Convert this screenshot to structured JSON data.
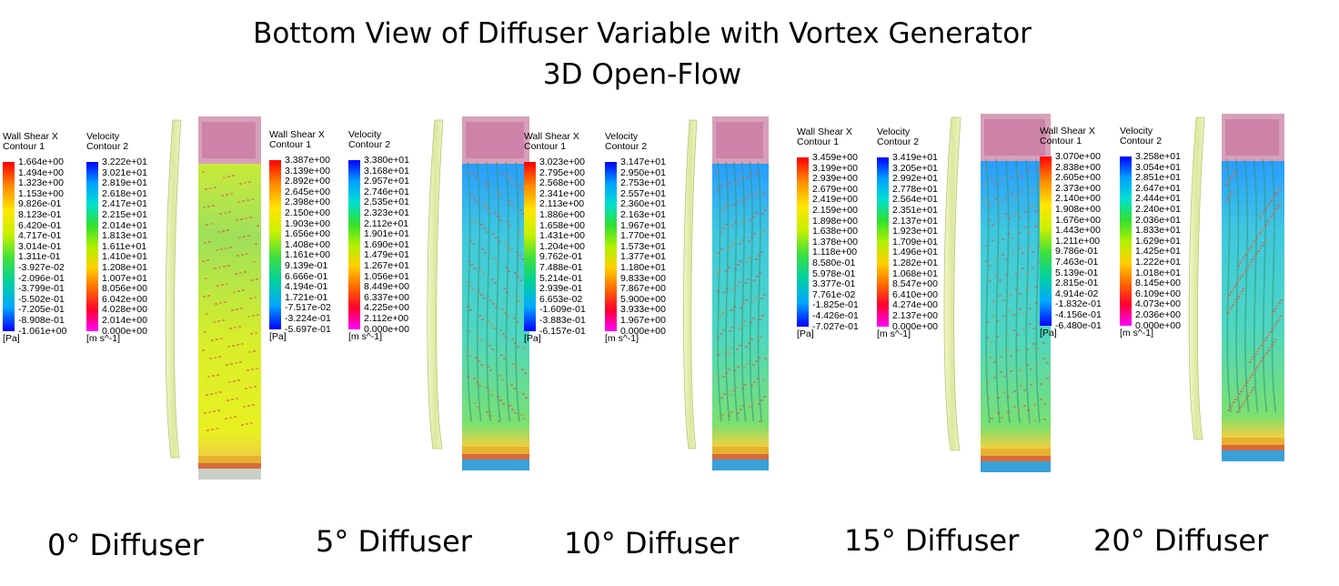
{
  "title": {
    "line1": "Bottom View of Diffuser Variable with Vortex Generator",
    "line2": "3D Open-Flow"
  },
  "legend_common": {
    "shear_title": "Wall Shear X",
    "shear_sub": "Contour 1",
    "shear_unit": "[Pa]",
    "vel_title": "Velocity",
    "vel_sub": "Contour 2",
    "vel_unit": "[m s^-1]"
  },
  "colormaps": {
    "shear": [
      "#ff0000",
      "#ff8c00",
      "#ffe600",
      "#c8f000",
      "#3ee03e",
      "#00d0a0",
      "#00a8ff",
      "#0000ff"
    ],
    "velocity": [
      "#0000ff",
      "#00a0ff",
      "#00e0d0",
      "#30e030",
      "#b0f000",
      "#ffd000",
      "#ff6a00",
      "#ff0030",
      "#ff00ff"
    ]
  },
  "panels": [
    {
      "caption": "0° Diffuser",
      "shear": [
        "1.664e+00",
        "1.494e+00",
        "1.323e+00",
        "1.153e+00",
        "9.826e-01",
        "8.123e-01",
        "6.420e-01",
        "4.717e-01",
        "3.014e-01",
        "1.311e-01",
        "-3.927e-02",
        "-2.096e-01",
        "-3.799e-01",
        "-5.502e-01",
        "-7.205e-01",
        "-8.908e-01",
        "-1.061e+00"
      ],
      "velocity": [
        "3.222e+01",
        "3.021e+01",
        "2.819e+01",
        "2.618e+01",
        "2.417e+01",
        "2.215e+01",
        "2.014e+01",
        "1.813e+01",
        "1.611e+01",
        "1.410e+01",
        "1.208e+01",
        "1.007e+01",
        "8.056e+00",
        "6.042e+00",
        "4.028e+00",
        "2.014e+00",
        "0.000e+00"
      ]
    },
    {
      "caption": "5° Diffuser",
      "shear": [
        "3.387e+00",
        "3.139e+00",
        "2.892e+00",
        "2.645e+00",
        "2.398e+00",
        "2.150e+00",
        "1.903e+00",
        "1.656e+00",
        "1.408e+00",
        "1.161e+00",
        "9.139e-01",
        "6.666e-01",
        "4.194e-01",
        "1.721e-01",
        "-7.517e-02",
        "-3.224e-01",
        "-5.697e-01"
      ],
      "velocity": [
        "3.380e+01",
        "3.168e+01",
        "2.957e+01",
        "2.746e+01",
        "2.535e+01",
        "2.323e+01",
        "2.112e+01",
        "1.901e+01",
        "1.690e+01",
        "1.479e+01",
        "1.267e+01",
        "1.056e+01",
        "8.449e+00",
        "6.337e+00",
        "4.225e+00",
        "2.112e+00",
        "0.000e+00"
      ]
    },
    {
      "caption": "10° Diffuser",
      "shear": [
        "3.023e+00",
        "2.795e+00",
        "2.568e+00",
        "2.341e+00",
        "2.113e+00",
        "1.886e+00",
        "1.658e+00",
        "1.431e+00",
        "1.204e+00",
        "9.762e-01",
        "7.488e-01",
        "5.214e-01",
        "2.939e-01",
        "6.653e-02",
        "-1.609e-01",
        "-3.883e-01",
        "-6.157e-01"
      ],
      "velocity": [
        "3.147e+01",
        "2.950e+01",
        "2.753e+01",
        "2.557e+01",
        "2.360e+01",
        "2.163e+01",
        "1.967e+01",
        "1.770e+01",
        "1.573e+01",
        "1.377e+01",
        "1.180e+01",
        "9.833e+00",
        "7.867e+00",
        "5.900e+00",
        "3.933e+00",
        "1.967e+00",
        "0.000e+00"
      ]
    },
    {
      "caption": "15° Diffuser",
      "shear": [
        "3.459e+00",
        "3.199e+00",
        "2.939e+00",
        "2.679e+00",
        "2.419e+00",
        "2.159e+00",
        "1.898e+00",
        "1.638e+00",
        "1.378e+00",
        "1.118e+00",
        "8.580e-01",
        "5.978e-01",
        "3.377e-01",
        "7.761e-02",
        "-1.825e-01",
        "-4.426e-01",
        "-7.027e-01"
      ],
      "velocity": [
        "3.419e+01",
        "3.205e+01",
        "2.992e+01",
        "2.778e+01",
        "2.564e+01",
        "2.351e+01",
        "2.137e+01",
        "1.923e+01",
        "1.709e+01",
        "1.496e+01",
        "1.282e+01",
        "1.068e+01",
        "8.547e+00",
        "6.410e+00",
        "4.274e+00",
        "2.137e+00",
        "0.000e+00"
      ]
    },
    {
      "caption": "20° Diffuser",
      "shear": [
        "3.070e+00",
        "2.838e+00",
        "2.605e+00",
        "2.373e+00",
        "2.140e+00",
        "1.908e+00",
        "1.676e+00",
        "1.443e+00",
        "1.211e+00",
        "9.786e-01",
        "7.463e-01",
        "5.139e-01",
        "2.815e-01",
        "4.914e-02",
        "-1.832e-01",
        "-4.156e-01",
        "-6.480e-01"
      ],
      "velocity": [
        "3.258e+01",
        "3.054e+01",
        "2.851e+01",
        "2.647e+01",
        "2.444e+01",
        "2.240e+01",
        "2.036e+01",
        "1.833e+01",
        "1.629e+01",
        "1.425e+01",
        "1.222e+01",
        "1.018e+01",
        "8.145e+00",
        "6.109e+00",
        "4.073e+00",
        "2.036e+00",
        "0.000e+00"
      ]
    }
  ]
}
